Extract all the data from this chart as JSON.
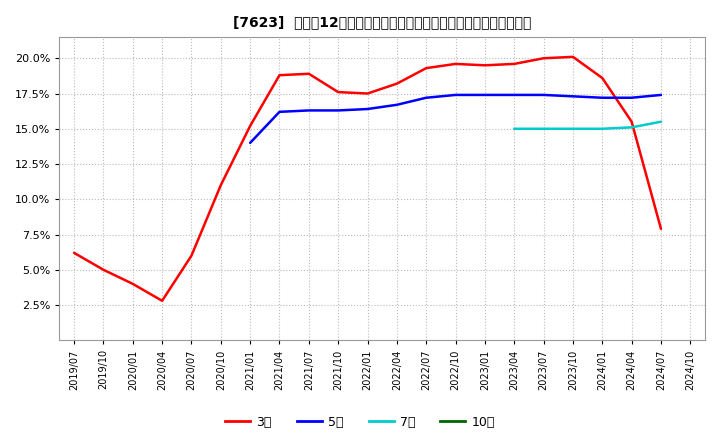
{
  "title": "[7623]  売上高12か月移動合計の対前年同期増減率の標準偏差の推移",
  "background_color": "#ffffff",
  "plot_bg_color": "#ffffff",
  "grid_color": "#bbbbbb",
  "ylim": [
    0.0,
    0.215
  ],
  "yticks": [
    0.025,
    0.05,
    0.075,
    0.1,
    0.125,
    0.15,
    0.175,
    0.2
  ],
  "series": [
    {
      "key": "3year",
      "color": "#ff0000",
      "label": "3年",
      "points": [
        [
          "2019/07",
          0.062
        ],
        [
          "2019/10",
          0.05
        ],
        [
          "2020/01",
          0.04
        ],
        [
          "2020/04",
          0.028
        ],
        [
          "2020/07",
          0.06
        ],
        [
          "2020/10",
          0.11
        ],
        [
          "2021/01",
          0.152
        ],
        [
          "2021/04",
          0.188
        ],
        [
          "2021/07",
          0.189
        ],
        [
          "2021/10",
          0.176
        ],
        [
          "2022/01",
          0.175
        ],
        [
          "2022/04",
          0.182
        ],
        [
          "2022/07",
          0.193
        ],
        [
          "2022/10",
          0.196
        ],
        [
          "2023/01",
          0.195
        ],
        [
          "2023/04",
          0.196
        ],
        [
          "2023/07",
          0.2
        ],
        [
          "2023/10",
          0.201
        ],
        [
          "2024/01",
          0.186
        ],
        [
          "2024/04",
          0.155
        ],
        [
          "2024/07",
          0.079
        ]
      ]
    },
    {
      "key": "5year",
      "color": "#0000ff",
      "label": "5年",
      "points": [
        [
          "2021/01",
          0.14
        ],
        [
          "2021/04",
          0.162
        ],
        [
          "2021/07",
          0.163
        ],
        [
          "2021/10",
          0.163
        ],
        [
          "2022/01",
          0.164
        ],
        [
          "2022/04",
          0.167
        ],
        [
          "2022/07",
          0.172
        ],
        [
          "2022/10",
          0.174
        ],
        [
          "2023/01",
          0.174
        ],
        [
          "2023/04",
          0.174
        ],
        [
          "2023/07",
          0.174
        ],
        [
          "2023/10",
          0.173
        ],
        [
          "2024/01",
          0.172
        ],
        [
          "2024/04",
          0.172
        ],
        [
          "2024/07",
          0.174
        ]
      ]
    },
    {
      "key": "7year",
      "color": "#00cccc",
      "label": "7年",
      "points": [
        [
          "2023/04",
          0.15
        ],
        [
          "2023/07",
          0.15
        ],
        [
          "2023/10",
          0.15
        ],
        [
          "2024/01",
          0.15
        ],
        [
          "2024/04",
          0.151
        ],
        [
          "2024/07",
          0.155
        ]
      ]
    },
    {
      "key": "10year",
      "color": "#006600",
      "label": "10年",
      "points": []
    }
  ],
  "x_tick_labels": [
    "2019/07",
    "2019/10",
    "2020/01",
    "2020/04",
    "2020/07",
    "2020/10",
    "2021/01",
    "2021/04",
    "2021/07",
    "2021/10",
    "2022/01",
    "2022/04",
    "2022/07",
    "2022/10",
    "2023/01",
    "2023/04",
    "2023/07",
    "2023/10",
    "2024/01",
    "2024/04",
    "2024/07",
    "2024/10"
  ]
}
